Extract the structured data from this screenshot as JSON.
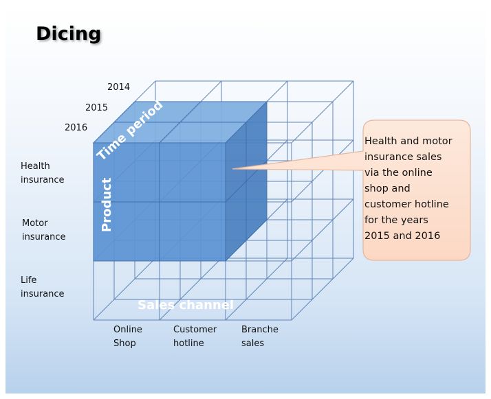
{
  "title": "Dicing",
  "axes": {
    "time_period": "Time period",
    "product": "Product",
    "sales_channel": "Sales channel"
  },
  "years": [
    "2014",
    "2015",
    "2016"
  ],
  "products": [
    [
      "Health",
      "insurance"
    ],
    [
      "Motor",
      "insurance"
    ],
    [
      "Life",
      "insurance"
    ]
  ],
  "channels": [
    [
      "Online",
      "Shop"
    ],
    [
      "Customer",
      "hotline"
    ],
    [
      "Branche",
      "sales"
    ]
  ],
  "callout": [
    "Health and motor",
    "insurance sales",
    "via the online",
    "shop and",
    "customer hotline",
    "for the years",
    "2015 and 2016"
  ],
  "colors": {
    "cube_fill": "#5b93d3",
    "cube_fill_top": "#7eaee0",
    "cube_fill_side": "#4a7fbf",
    "grid_line": "#5f84b8",
    "callout_fill": "#fde3d3",
    "callout_border": "#e6b69c"
  }
}
